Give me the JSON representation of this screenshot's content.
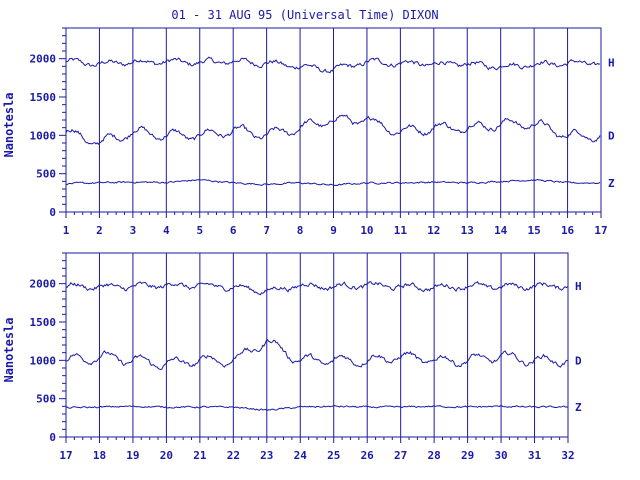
{
  "chart_data": {
    "type": "line",
    "title": "01 - 31 AUG 95 (Universal Time) DIXON",
    "ylabel": "Nanotesla",
    "ylim": [
      0,
      2400
    ],
    "yticks": [
      "0",
      "500",
      "1000",
      "1500",
      "2000"
    ],
    "series_labels": [
      "H",
      "D",
      "Z"
    ],
    "panels": [
      {
        "xlabels": [
          "1",
          "2",
          "3",
          "4",
          "5",
          "6",
          "7",
          "8",
          "9",
          "10",
          "11",
          "12",
          "13",
          "14",
          "15",
          "16",
          "17"
        ],
        "series": [
          {
            "name": "H",
            "baseline": 1950,
            "values": [
              1960,
              1930,
              1960,
              1960,
              1950,
              1965,
              1945,
              1900,
              1850,
              1960,
              1940,
              1930,
              1930,
              1900,
              1930,
              1940
            ]
          },
          {
            "name": "D",
            "baseline": 1000,
            "values": [
              1050,
              900,
              1050,
              1000,
              1000,
              1060,
              1000,
              1100,
              1200,
              1200,
              1050,
              1100,
              1100,
              1150,
              1150,
              1000
            ]
          },
          {
            "name": "Z",
            "baseline": 380,
            "values": [
              370,
              380,
              390,
              385,
              420,
              380,
              360,
              380,
              350,
              380,
              380,
              390,
              380,
              400,
              420,
              380
            ]
          }
        ]
      },
      {
        "xlabels": [
          "17",
          "18",
          "19",
          "20",
          "21",
          "22",
          "23",
          "24",
          "25",
          "26",
          "27",
          "28",
          "29",
          "30",
          "31",
          "32"
        ],
        "series": [
          {
            "name": "H",
            "baseline": 1970,
            "values": [
              1970,
              1960,
              1960,
              1980,
              1970,
              1960,
              1900,
              1980,
              1960,
              1980,
              1960,
              1950,
              1970,
              1960,
              1970
            ]
          },
          {
            "name": "D",
            "baseline": 1000,
            "values": [
              1000,
              1050,
              1000,
              950,
              1000,
              1000,
              1250,
              1000,
              1000,
              1000,
              1050,
              1000,
              1000,
              1050,
              1000
            ]
          },
          {
            "name": "Z",
            "baseline": 390,
            "values": [
              380,
              390,
              400,
              390,
              390,
              390,
              350,
              390,
              400,
              390,
              390,
              400,
              390,
              400,
              390
            ]
          }
        ]
      }
    ]
  }
}
